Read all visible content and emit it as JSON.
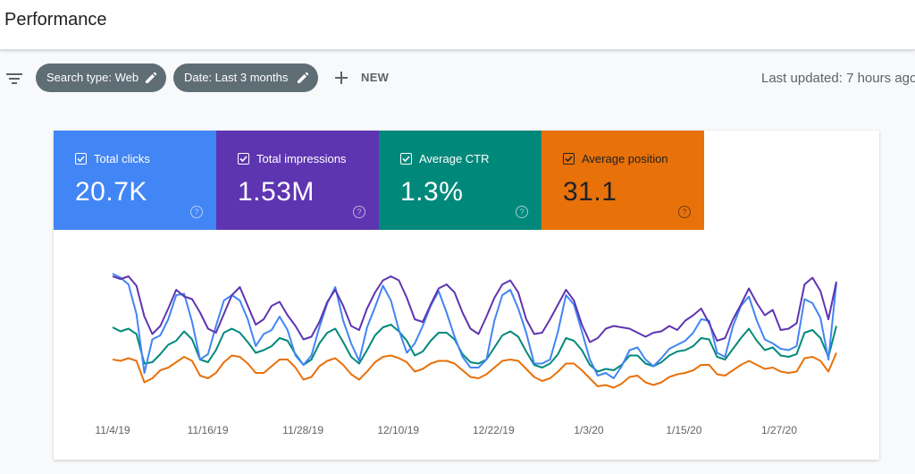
{
  "header": {
    "title": "Performance"
  },
  "toolbar": {
    "chips": [
      {
        "label": "Search type: Web"
      },
      {
        "label": "Date: Last 3 months"
      }
    ],
    "new_label": "NEW",
    "last_updated": "Last updated: 7 hours ago"
  },
  "metrics": [
    {
      "label": "Total clicks",
      "value": "20.7K",
      "checked": true,
      "color": "#4285f4"
    },
    {
      "label": "Total impressions",
      "value": "1.53M",
      "checked": true,
      "color": "#5e35b1"
    },
    {
      "label": "Average CTR",
      "value": "1.3%",
      "checked": true,
      "color": "#00897b"
    },
    {
      "label": "Average position",
      "value": "31.1",
      "checked": true,
      "color": "#e8710a"
    }
  ],
  "chart_data": {
    "type": "line",
    "x_tick_labels": [
      "11/4/19",
      "11/16/19",
      "11/28/19",
      "12/10/19",
      "12/22/19",
      "1/3/20",
      "1/15/20",
      "1/27/20"
    ],
    "points_per_series": 92,
    "y_note": "normalized 0-100 (no y axis shown)",
    "series": [
      {
        "name": "Total impressions",
        "color": "#5e35b1",
        "values": [
          92,
          90,
          92,
          85,
          62,
          49,
          55,
          68,
          82,
          77,
          75,
          65,
          53,
          50,
          64,
          78,
          84,
          70,
          56,
          60,
          70,
          73,
          63,
          55,
          45,
          47,
          58,
          73,
          82,
          70,
          55,
          52,
          68,
          80,
          89,
          92,
          89,
          76,
          60,
          58,
          71,
          83,
          86,
          80,
          65,
          53,
          49,
          62,
          76,
          86,
          89,
          80,
          60,
          49,
          50,
          60,
          71,
          82,
          74,
          56,
          43,
          46,
          53,
          55,
          54,
          53,
          50,
          47,
          50,
          51,
          55,
          52,
          59,
          63,
          68,
          57,
          44,
          46,
          60,
          71,
          83,
          72,
          63,
          67,
          52,
          53,
          57,
          86,
          91,
          81,
          60,
          88
        ]
      },
      {
        "name": "Total clicks",
        "color": "#4285f4",
        "values": [
          94,
          91,
          86,
          64,
          20,
          45,
          48,
          60,
          78,
          79,
          58,
          30,
          34,
          55,
          74,
          78,
          74,
          60,
          40,
          49,
          52,
          62,
          52,
          33,
          26,
          33,
          54,
          72,
          84,
          59,
          42,
          29,
          54,
          69,
          85,
          74,
          52,
          35,
          42,
          55,
          70,
          81,
          65,
          47,
          32,
          24,
          24,
          30,
          59,
          78,
          82,
          68,
          50,
          27,
          27,
          30,
          51,
          78,
          71,
          51,
          30,
          18,
          20,
          16,
          25,
          37,
          39,
          30,
          25,
          31,
          38,
          41,
          44,
          50,
          60,
          59,
          35,
          32,
          55,
          70,
          77,
          59,
          45,
          42,
          38,
          37,
          40,
          75,
          72,
          61,
          30,
          87
        ]
      },
      {
        "name": "Average CTR",
        "color": "#00897b",
        "values": [
          54,
          51,
          53,
          49,
          27,
          28,
          34,
          41,
          44,
          51,
          45,
          30,
          28,
          37,
          50,
          53,
          50,
          43,
          35,
          37,
          40,
          46,
          44,
          34,
          26,
          30,
          42,
          50,
          53,
          43,
          32,
          27,
          37,
          48,
          54,
          56,
          51,
          44,
          33,
          36,
          44,
          50,
          50,
          45,
          34,
          28,
          27,
          30,
          39,
          48,
          51,
          47,
          36,
          26,
          24,
          27,
          34,
          46,
          44,
          37,
          26,
          21,
          23,
          22,
          26,
          33,
          33,
          27,
          25,
          28,
          33,
          36,
          37,
          40,
          46,
          45,
          32,
          30,
          38,
          46,
          53,
          44,
          37,
          39,
          33,
          32,
          34,
          50,
          52,
          46,
          32,
          55
        ]
      },
      {
        "name": "Average position",
        "color": "#e8710a",
        "values": [
          30,
          29,
          31,
          29,
          13,
          16,
          22,
          24,
          28,
          32,
          29,
          18,
          16,
          20,
          28,
          33,
          32,
          27,
          20,
          20,
          25,
          30,
          30,
          24,
          15,
          17,
          25,
          29,
          31,
          26,
          19,
          15,
          21,
          28,
          32,
          33,
          31,
          28,
          21,
          23,
          27,
          29,
          29,
          27,
          22,
          17,
          16,
          19,
          24,
          29,
          30,
          29,
          23,
          17,
          14,
          16,
          21,
          27,
          27,
          22,
          16,
          10,
          11,
          9,
          12,
          17,
          18,
          13,
          11,
          13,
          17,
          19,
          20,
          22,
          26,
          26,
          19,
          18,
          22,
          26,
          29,
          26,
          23,
          24,
          21,
          20,
          21,
          31,
          32,
          29,
          21,
          35
        ]
      }
    ]
  }
}
